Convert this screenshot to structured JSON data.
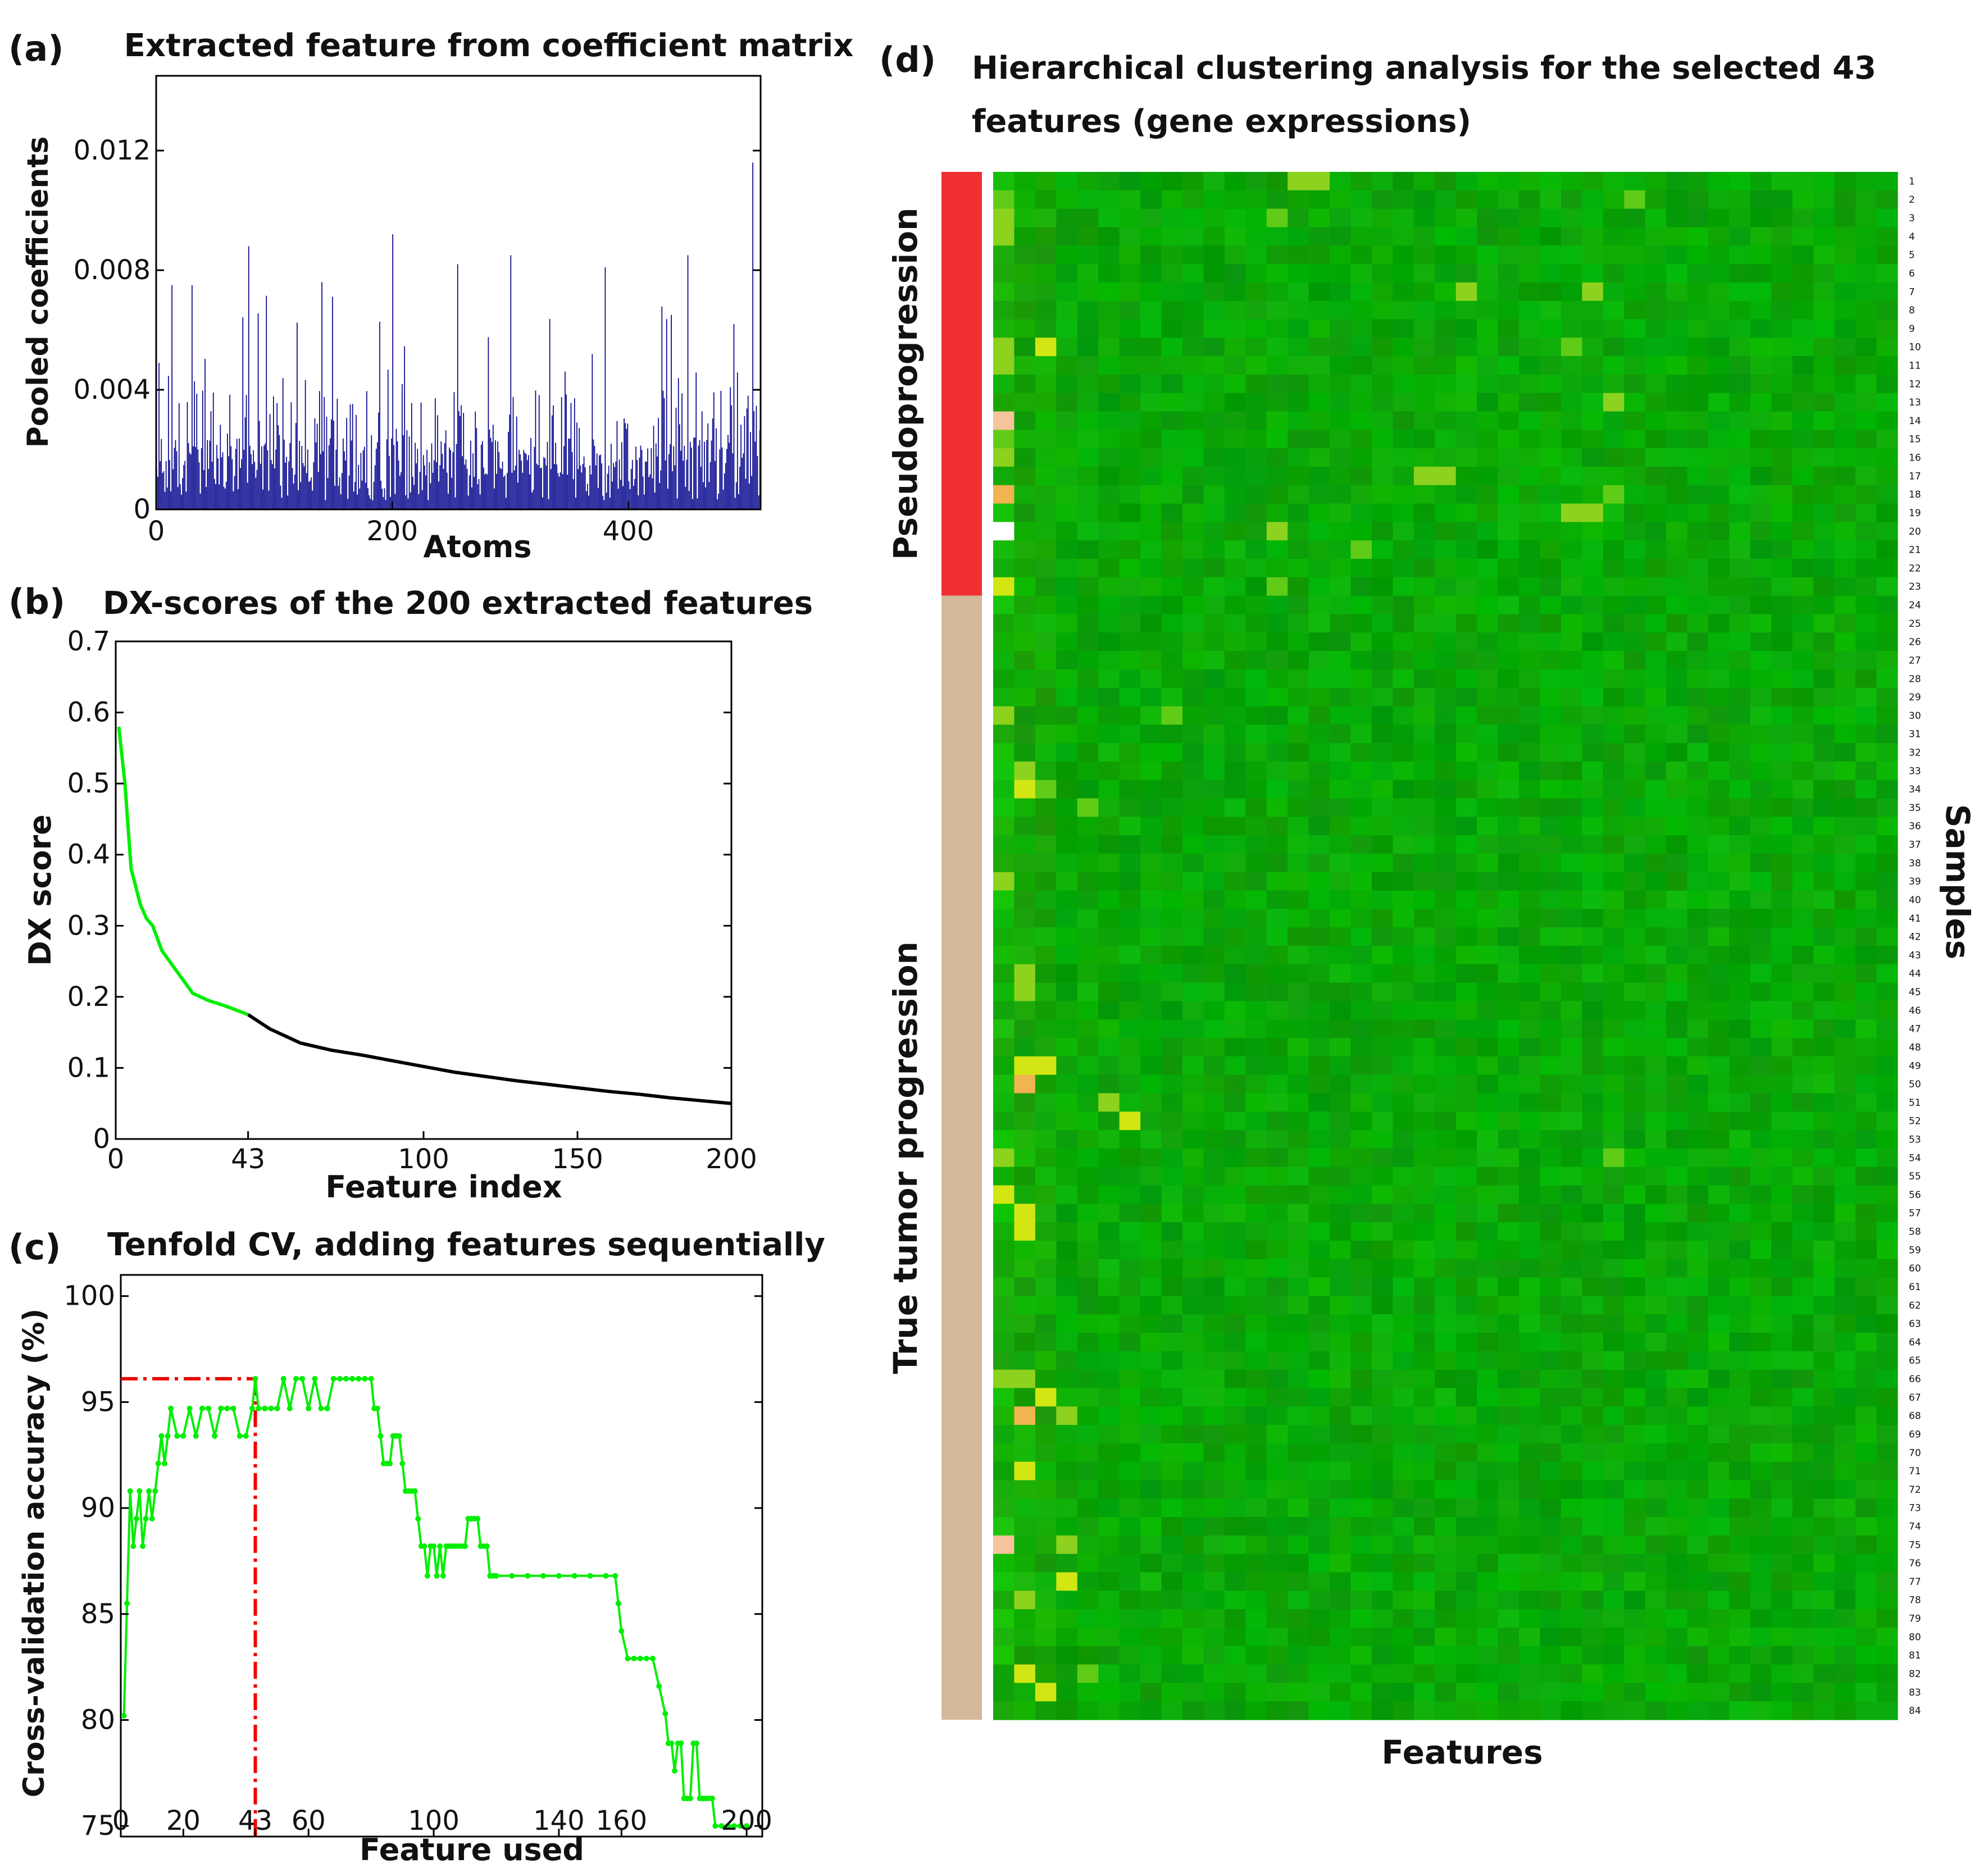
{
  "figure": {
    "panel_labels": [
      "(a)",
      "(b)",
      "(c)",
      "(d)"
    ]
  },
  "chart_data": [
    {
      "id": "a",
      "type": "bar",
      "title": "Extracted feature from coefficient matrix",
      "xlabel": "Atoms",
      "ylabel": "Pooled coefficients",
      "xlim": [
        0,
        512
      ],
      "ylim": [
        0,
        0.0145
      ],
      "xticks": [
        0,
        200,
        400
      ],
      "yticks": [
        0,
        0.004,
        0.008,
        0.012
      ],
      "ytick_labels": [
        "0",
        "0.004",
        "0.008",
        "0.012"
      ],
      "bar_color": "#00008b",
      "n_bars": 512,
      "peaks": [
        {
          "x": 2,
          "y": 0.0049
        },
        {
          "x": 13,
          "y": 0.0075
        },
        {
          "x": 30,
          "y": 0.0075
        },
        {
          "x": 78,
          "y": 0.0088
        },
        {
          "x": 140,
          "y": 0.0076
        },
        {
          "x": 200,
          "y": 0.0092
        },
        {
          "x": 255,
          "y": 0.0082
        },
        {
          "x": 300,
          "y": 0.0085
        },
        {
          "x": 380,
          "y": 0.0081
        },
        {
          "x": 450,
          "y": 0.0085
        },
        {
          "x": 505,
          "y": 0.0116
        }
      ],
      "baseline_mean": 0.0018
    },
    {
      "id": "b",
      "type": "line",
      "title": "DX-scores of the 200 extracted features",
      "xlabel": "Feature index",
      "ylabel": "DX score",
      "xlim": [
        0,
        200
      ],
      "ylim": [
        0,
        0.7
      ],
      "xticks": [
        0,
        43,
        100,
        150,
        200
      ],
      "yticks": [
        0,
        0.1,
        0.2,
        0.3,
        0.4,
        0.5,
        0.6,
        0.7
      ],
      "ytick_labels": [
        "0",
        "0.1",
        "0.2",
        "0.3",
        "0.4",
        "0.5",
        "0.6",
        "0.7"
      ],
      "highlight_until": 43,
      "highlight_color": "#00ee00",
      "line_color": "#000000",
      "x": [
        1,
        3,
        5,
        8,
        10,
        12,
        15,
        20,
        25,
        30,
        35,
        40,
        43,
        50,
        60,
        70,
        80,
        90,
        100,
        110,
        120,
        130,
        140,
        150,
        160,
        170,
        180,
        190,
        200
      ],
      "values": [
        0.58,
        0.5,
        0.38,
        0.33,
        0.31,
        0.3,
        0.265,
        0.235,
        0.205,
        0.195,
        0.188,
        0.18,
        0.175,
        0.155,
        0.135,
        0.125,
        0.118,
        0.11,
        0.102,
        0.094,
        0.088,
        0.082,
        0.077,
        0.072,
        0.067,
        0.063,
        0.058,
        0.054,
        0.05
      ]
    },
    {
      "id": "c",
      "type": "line",
      "title": "Tenfold CV, adding features sequentially",
      "xlabel": "Feature used",
      "ylabel": "Cross-validation accuracy (%)",
      "xlim": [
        0,
        205
      ],
      "ylim": [
        74.5,
        101
      ],
      "xticks": [
        0,
        20,
        43,
        60,
        100,
        140,
        160,
        200
      ],
      "yticks": [
        75,
        80,
        85,
        90,
        95,
        100
      ],
      "line_color": "#00ee00",
      "marker_color": "#00ee00",
      "reference_line": {
        "x": 43,
        "y": 96.1,
        "color": "#ee0000"
      },
      "x": [
        1,
        2,
        3,
        4,
        5,
        6,
        7,
        8,
        9,
        10,
        11,
        12,
        13,
        14,
        15,
        16,
        18,
        20,
        22,
        24,
        26,
        28,
        30,
        32,
        34,
        36,
        38,
        40,
        42,
        43,
        44,
        46,
        48,
        50,
        52,
        54,
        56,
        58,
        60,
        62,
        64,
        66,
        68,
        70,
        72,
        74,
        76,
        78,
        80,
        81,
        82,
        83,
        84,
        85,
        86,
        87,
        88,
        89,
        90,
        91,
        92,
        93,
        94,
        95,
        96,
        97,
        98,
        99,
        100,
        101,
        102,
        103,
        104,
        105,
        106,
        107,
        108,
        109,
        110,
        111,
        112,
        113,
        114,
        115,
        116,
        117,
        118,
        119,
        120,
        125,
        130,
        135,
        140,
        145,
        150,
        155,
        158,
        159,
        160,
        162,
        164,
        166,
        168,
        170,
        172,
        174,
        175,
        176,
        177,
        178,
        179,
        180,
        181,
        182,
        183,
        184,
        185,
        186,
        187,
        188,
        189,
        190,
        192,
        194,
        196,
        198,
        200
      ],
      "values": [
        80.2,
        85.5,
        90.8,
        88.2,
        89.5,
        90.8,
        88.2,
        89.5,
        90.8,
        89.5,
        90.8,
        92.1,
        93.4,
        92.1,
        93.4,
        94.7,
        93.4,
        93.4,
        94.7,
        93.4,
        94.7,
        94.7,
        93.4,
        94.7,
        94.7,
        94.7,
        93.4,
        93.4,
        94.7,
        96.1,
        94.7,
        94.7,
        94.7,
        94.7,
        96.1,
        94.7,
        96.1,
        96.1,
        94.7,
        96.1,
        94.7,
        94.7,
        96.1,
        96.1,
        96.1,
        96.1,
        96.1,
        96.1,
        96.1,
        94.7,
        94.7,
        93.4,
        92.1,
        92.1,
        92.1,
        93.4,
        93.4,
        93.4,
        92.1,
        90.8,
        90.8,
        90.8,
        90.8,
        89.5,
        88.2,
        88.2,
        86.8,
        88.2,
        88.2,
        86.8,
        88.2,
        86.8,
        88.2,
        88.2,
        88.2,
        88.2,
        88.2,
        88.2,
        88.2,
        89.5,
        89.5,
        89.5,
        89.5,
        88.2,
        88.2,
        88.2,
        86.8,
        86.8,
        86.8,
        86.8,
        86.8,
        86.8,
        86.8,
        86.8,
        86.8,
        86.8,
        86.8,
        85.5,
        84.2,
        82.9,
        82.9,
        82.9,
        82.9,
        82.9,
        81.6,
        80.3,
        78.9,
        78.9,
        77.6,
        78.9,
        78.9,
        76.3,
        76.3,
        76.3,
        78.9,
        78.9,
        76.3,
        76.3,
        76.3,
        76.3,
        76.3,
        75.0,
        75.0,
        75.0,
        75.0,
        75.0,
        75.0
      ]
    },
    {
      "id": "d",
      "type": "heatmap",
      "title_line1": "Hierarchical clustering analysis for the selected 43",
      "title_line2": "features (gene expressions)",
      "xlabel": "Features",
      "ylabel": "Samples",
      "n_rows": 84,
      "n_cols": 43,
      "row_labels": [
        "1",
        "2",
        "3",
        "4",
        "5",
        "6",
        "7",
        "8",
        "9",
        "10",
        "11",
        "12",
        "13",
        "14",
        "15",
        "16",
        "17",
        "18",
        "19",
        "20",
        "21",
        "22",
        "23",
        "24",
        "25",
        "26",
        "27",
        "28",
        "29",
        "30",
        "31",
        "32",
        "33",
        "34",
        "35",
        "36",
        "37",
        "38",
        "39",
        "40",
        "41",
        "42",
        "43",
        "44",
        "45",
        "46",
        "47",
        "48",
        "49",
        "50",
        "51",
        "52",
        "53",
        "54",
        "55",
        "56",
        "57",
        "58",
        "59",
        "60",
        "61",
        "62",
        "63",
        "64",
        "65",
        "66",
        "67",
        "68",
        "69",
        "70",
        "71",
        "72",
        "73",
        "74",
        "75",
        "76",
        "77",
        "78",
        "79",
        "80",
        "81",
        "82",
        "83",
        "84"
      ],
      "groups": [
        {
          "label": "Pseudoprogression",
          "rows": [
            1,
            23
          ],
          "color": "#f03030"
        },
        {
          "label": "True tumor progression",
          "rows": [
            24,
            84
          ],
          "color": "#d4b89a"
        }
      ],
      "highlights": [
        {
          "row": 1,
          "col": 15,
          "level": 2
        },
        {
          "row": 1,
          "col": 16,
          "level": 2
        },
        {
          "row": 2,
          "col": 1,
          "level": 1
        },
        {
          "row": 2,
          "col": 31,
          "level": 1
        },
        {
          "row": 3,
          "col": 1,
          "level": 2
        },
        {
          "row": 3,
          "col": 14,
          "level": 1
        },
        {
          "row": 4,
          "col": 1,
          "level": 2
        },
        {
          "row": 7,
          "col": 23,
          "level": 2
        },
        {
          "row": 7,
          "col": 29,
          "level": 2
        },
        {
          "row": 10,
          "col": 1,
          "level": 2
        },
        {
          "row": 10,
          "col": 3,
          "level": 3
        },
        {
          "row": 10,
          "col": 28,
          "level": 1
        },
        {
          "row": 11,
          "col": 1,
          "level": 2
        },
        {
          "row": 13,
          "col": 30,
          "level": 2
        },
        {
          "row": 14,
          "col": 1,
          "level": 5
        },
        {
          "row": 15,
          "col": 1,
          "level": 1
        },
        {
          "row": 16,
          "col": 1,
          "level": 2
        },
        {
          "row": 17,
          "col": 21,
          "level": 2
        },
        {
          "row": 17,
          "col": 22,
          "level": 2
        },
        {
          "row": 18,
          "col": 1,
          "level": 4
        },
        {
          "row": 18,
          "col": 30,
          "level": 1
        },
        {
          "row": 19,
          "col": 28,
          "level": 2
        },
        {
          "row": 19,
          "col": 29,
          "level": 2
        },
        {
          "row": 20,
          "col": 1,
          "level": 6
        },
        {
          "row": 20,
          "col": 14,
          "level": 2
        },
        {
          "row": 21,
          "col": 18,
          "level": 1
        },
        {
          "row": 23,
          "col": 1,
          "level": 3
        },
        {
          "row": 23,
          "col": 14,
          "level": 1
        },
        {
          "row": 30,
          "col": 1,
          "level": 2
        },
        {
          "row": 30,
          "col": 9,
          "level": 1
        },
        {
          "row": 33,
          "col": 2,
          "level": 2
        },
        {
          "row": 34,
          "col": 2,
          "level": 3
        },
        {
          "row": 34,
          "col": 3,
          "level": 1
        },
        {
          "row": 35,
          "col": 5,
          "level": 1
        },
        {
          "row": 39,
          "col": 1,
          "level": 2
        },
        {
          "row": 44,
          "col": 2,
          "level": 2
        },
        {
          "row": 45,
          "col": 2,
          "level": 2
        },
        {
          "row": 49,
          "col": 2,
          "level": 3
        },
        {
          "row": 49,
          "col": 3,
          "level": 3
        },
        {
          "row": 50,
          "col": 2,
          "level": 4
        },
        {
          "row": 51,
          "col": 6,
          "level": 2
        },
        {
          "row": 52,
          "col": 7,
          "level": 3
        },
        {
          "row": 54,
          "col": 1,
          "level": 2
        },
        {
          "row": 54,
          "col": 30,
          "level": 1
        },
        {
          "row": 56,
          "col": 1,
          "level": 3
        },
        {
          "row": 57,
          "col": 2,
          "level": 3
        },
        {
          "row": 58,
          "col": 2,
          "level": 3
        },
        {
          "row": 66,
          "col": 1,
          "level": 2
        },
        {
          "row": 66,
          "col": 2,
          "level": 2
        },
        {
          "row": 67,
          "col": 3,
          "level": 3
        },
        {
          "row": 68,
          "col": 2,
          "level": 4
        },
        {
          "row": 68,
          "col": 4,
          "level": 2
        },
        {
          "row": 71,
          "col": 2,
          "level": 3
        },
        {
          "row": 75,
          "col": 1,
          "level": 5
        },
        {
          "row": 75,
          "col": 4,
          "level": 2
        },
        {
          "row": 77,
          "col": 4,
          "level": 3
        },
        {
          "row": 78,
          "col": 2,
          "level": 2
        },
        {
          "row": 82,
          "col": 2,
          "level": 3
        },
        {
          "row": 82,
          "col": 5,
          "level": 1
        },
        {
          "row": 83,
          "col": 3,
          "level": 3
        }
      ]
    }
  ]
}
